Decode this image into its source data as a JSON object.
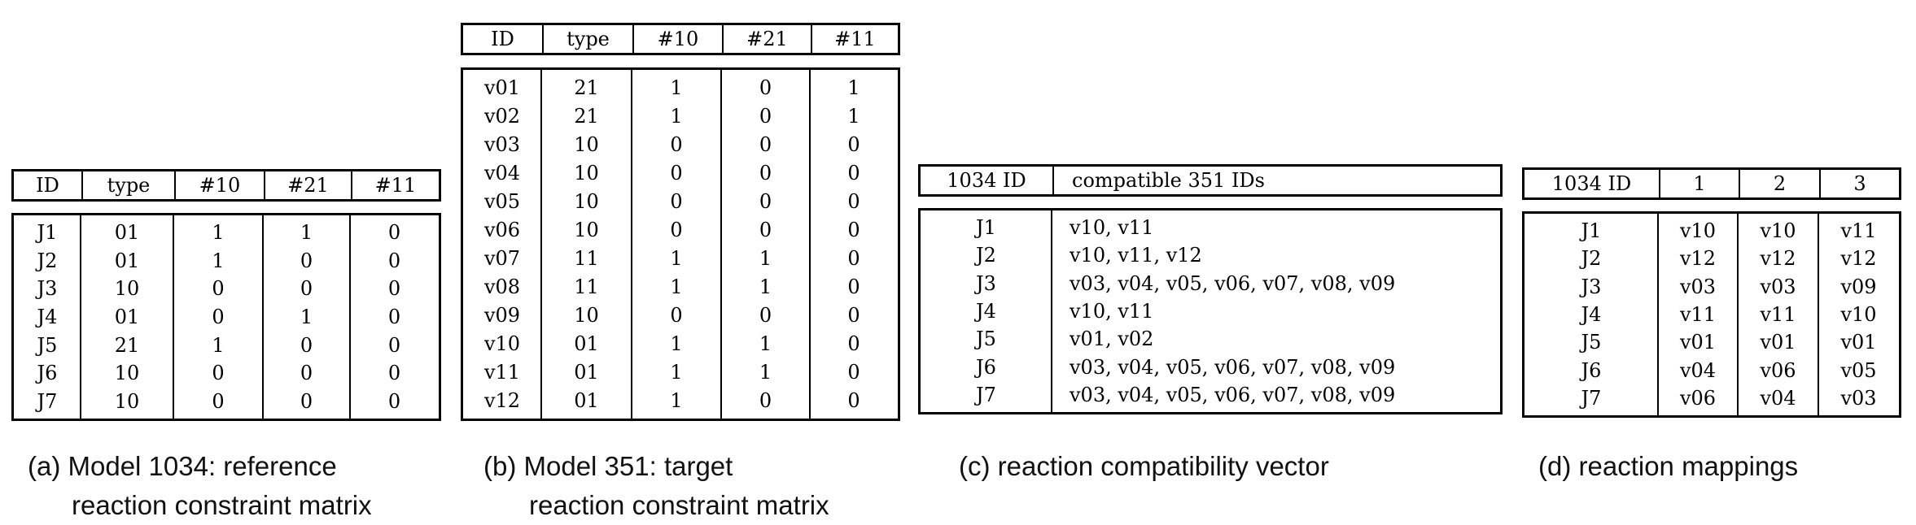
{
  "tables": {
    "a": {
      "headers": [
        "ID",
        "type",
        "#10",
        "#21",
        "#11"
      ],
      "rows": [
        [
          "J1",
          "01",
          "1",
          "1",
          "0"
        ],
        [
          "J2",
          "01",
          "1",
          "0",
          "0"
        ],
        [
          "J3",
          "10",
          "0",
          "0",
          "0"
        ],
        [
          "J4",
          "01",
          "0",
          "1",
          "0"
        ],
        [
          "J5",
          "21",
          "1",
          "0",
          "0"
        ],
        [
          "J6",
          "10",
          "0",
          "0",
          "0"
        ],
        [
          "J7",
          "10",
          "0",
          "0",
          "0"
        ]
      ],
      "caption_line1": "(a) Model 1034: reference",
      "caption_line2": "reaction constraint matrix"
    },
    "b": {
      "headers": [
        "ID",
        "type",
        "#10",
        "#21",
        "#11"
      ],
      "rows": [
        [
          "v01",
          "21",
          "1",
          "0",
          "1"
        ],
        [
          "v02",
          "21",
          "1",
          "0",
          "1"
        ],
        [
          "v03",
          "10",
          "0",
          "0",
          "0"
        ],
        [
          "v04",
          "10",
          "0",
          "0",
          "0"
        ],
        [
          "v05",
          "10",
          "0",
          "0",
          "0"
        ],
        [
          "v06",
          "10",
          "0",
          "0",
          "0"
        ],
        [
          "v07",
          "11",
          "1",
          "1",
          "0"
        ],
        [
          "v08",
          "11",
          "1",
          "1",
          "0"
        ],
        [
          "v09",
          "10",
          "0",
          "0",
          "0"
        ],
        [
          "v10",
          "01",
          "1",
          "1",
          "0"
        ],
        [
          "v11",
          "01",
          "1",
          "1",
          "0"
        ],
        [
          "v12",
          "01",
          "1",
          "0",
          "0"
        ]
      ],
      "caption_line1": "(b) Model 351: target",
      "caption_line2": "reaction constraint matrix"
    },
    "c": {
      "headers": [
        "1034 ID",
        "compatible 351 IDs"
      ],
      "rows": [
        [
          "J1",
          "v10, v11"
        ],
        [
          "J2",
          "v10, v11, v12"
        ],
        [
          "J3",
          "v03, v04, v05, v06, v07, v08, v09"
        ],
        [
          "J4",
          "v10, v11"
        ],
        [
          "J5",
          "v01, v02"
        ],
        [
          "J6",
          "v03, v04, v05, v06, v07, v08, v09"
        ],
        [
          "J7",
          "v03, v04, v05, v06, v07, v08, v09"
        ]
      ],
      "caption_line1": "(c) reaction compatibility vector"
    },
    "d": {
      "headers": [
        "1034 ID",
        "1",
        "2",
        "3"
      ],
      "rows": [
        [
          "J1",
          "v10",
          "v10",
          "v11"
        ],
        [
          "J2",
          "v12",
          "v12",
          "v12"
        ],
        [
          "J3",
          "v03",
          "v03",
          "v09"
        ],
        [
          "J4",
          "v11",
          "v11",
          "v10"
        ],
        [
          "J5",
          "v01",
          "v01",
          "v01"
        ],
        [
          "J6",
          "v04",
          "v06",
          "v05"
        ],
        [
          "J7",
          "v06",
          "v04",
          "v03"
        ]
      ],
      "caption_line1": "(d) reaction mappings"
    }
  }
}
